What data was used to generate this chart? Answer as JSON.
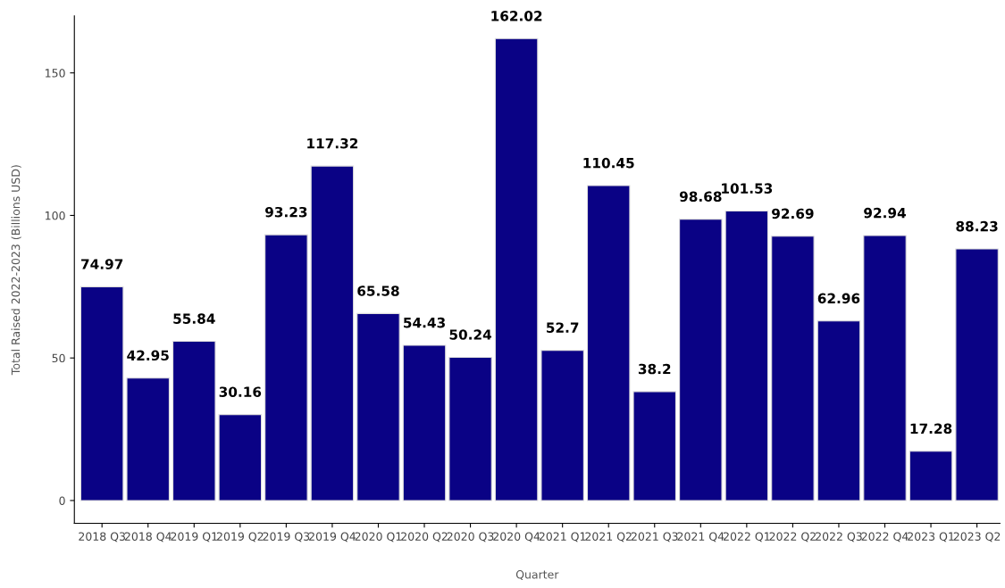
{
  "chart_data": {
    "type": "bar",
    "xlabel": "Quarter",
    "ylabel": "Total Raised 2022-2023 (Billions USD)",
    "categories": [
      "2018 Q3",
      "2018 Q4",
      "2019 Q1",
      "2019 Q2",
      "2019 Q3",
      "2019 Q4",
      "2020 Q1",
      "2020 Q2",
      "2020 Q3",
      "2020 Q4",
      "2021 Q1",
      "2021 Q2",
      "2021 Q3",
      "2021 Q4",
      "2022 Q1",
      "2022 Q2",
      "2022 Q3",
      "2022 Q4",
      "2023 Q1",
      "2023 Q2"
    ],
    "values": [
      74.97,
      42.95,
      55.84,
      30.16,
      93.23,
      117.32,
      65.58,
      54.43,
      50.24,
      162.02,
      52.7,
      110.45,
      38.2,
      98.68,
      101.53,
      92.69,
      62.96,
      92.94,
      17.28,
      88.23
    ],
    "color": "#0a0285",
    "data_labels": true,
    "grid": false,
    "legend": false,
    "ylim": [
      -8,
      170
    ],
    "yticks": [
      0,
      50,
      100,
      150
    ]
  }
}
